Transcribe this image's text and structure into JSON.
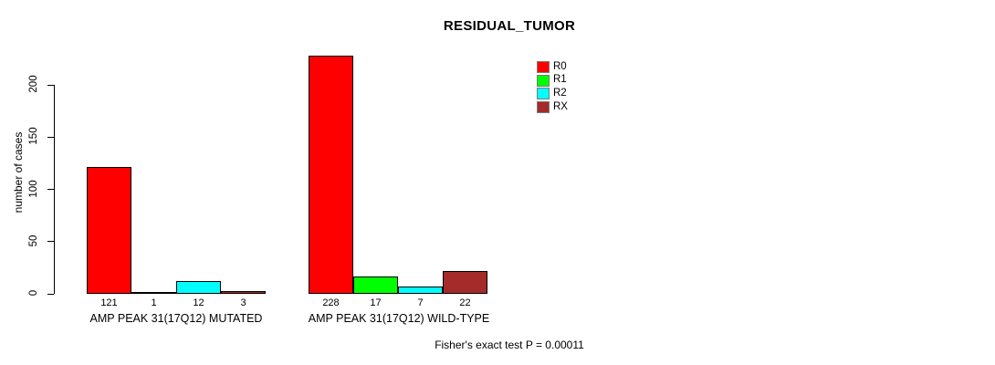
{
  "chart_data": {
    "type": "bar",
    "title": "RESIDUAL_TUMOR",
    "ylabel": "number of cases",
    "yticks": [
      0,
      50,
      100,
      150,
      200
    ],
    "ylim": [
      0,
      200
    ],
    "grid": false,
    "legend_position": "right",
    "legend": [
      "R0",
      "R1",
      "R2",
      "RX"
    ],
    "colors": [
      "#ff0000",
      "#00ff00",
      "#00ffff",
      "#a52a2a"
    ],
    "categories": [
      "AMP PEAK 31(17Q12) MUTATED",
      "AMP PEAK 31(17Q12) WILD-TYPE"
    ],
    "series": [
      {
        "name": "R0",
        "values": [
          121,
          228
        ]
      },
      {
        "name": "R1",
        "values": [
          1,
          17
        ]
      },
      {
        "name": "R2",
        "values": [
          12,
          7
        ]
      },
      {
        "name": "RX",
        "values": [
          3,
          22
        ]
      }
    ],
    "groups": [
      {
        "label": "AMP PEAK 31(17Q12) MUTATED",
        "values": [
          121,
          1,
          12,
          3
        ]
      },
      {
        "label": "AMP PEAK 31(17Q12) WILD-TYPE",
        "values": [
          228,
          17,
          7,
          22
        ]
      }
    ],
    "annotation": "Fisher's exact test P = 0.00011"
  }
}
